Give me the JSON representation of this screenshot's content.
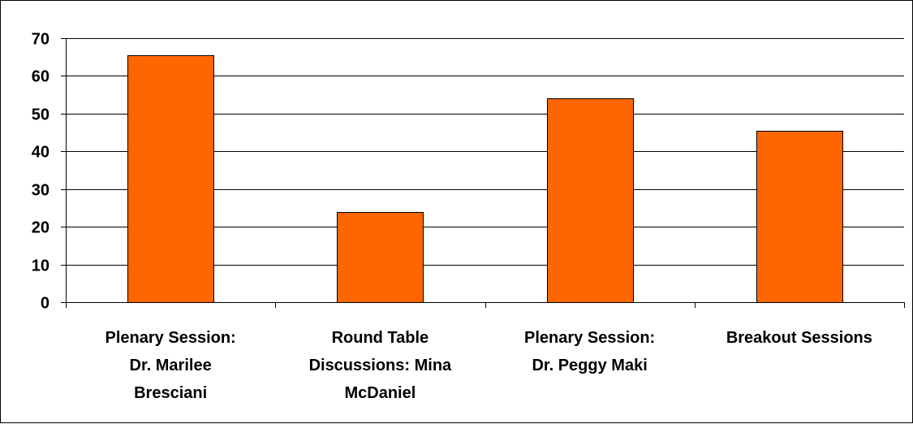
{
  "chart_data": {
    "type": "bar",
    "categories": [
      [
        "Plenary Session:",
        "Dr. Marilee",
        "Bresciani"
      ],
      [
        "Round Table",
        "Discussions: Mina",
        "McDaniel"
      ],
      [
        "Plenary Session:",
        "Dr. Peggy Maki"
      ],
      [
        "Breakout Sessions"
      ]
    ],
    "values": [
      65.5,
      24,
      54,
      45.5
    ],
    "ylim": [
      0,
      70
    ],
    "yticks": [
      0,
      10,
      20,
      30,
      40,
      50,
      60,
      70
    ],
    "grid": true,
    "legend": false,
    "bar_color": "#FF6600",
    "bar_edge_color": "#000000"
  }
}
